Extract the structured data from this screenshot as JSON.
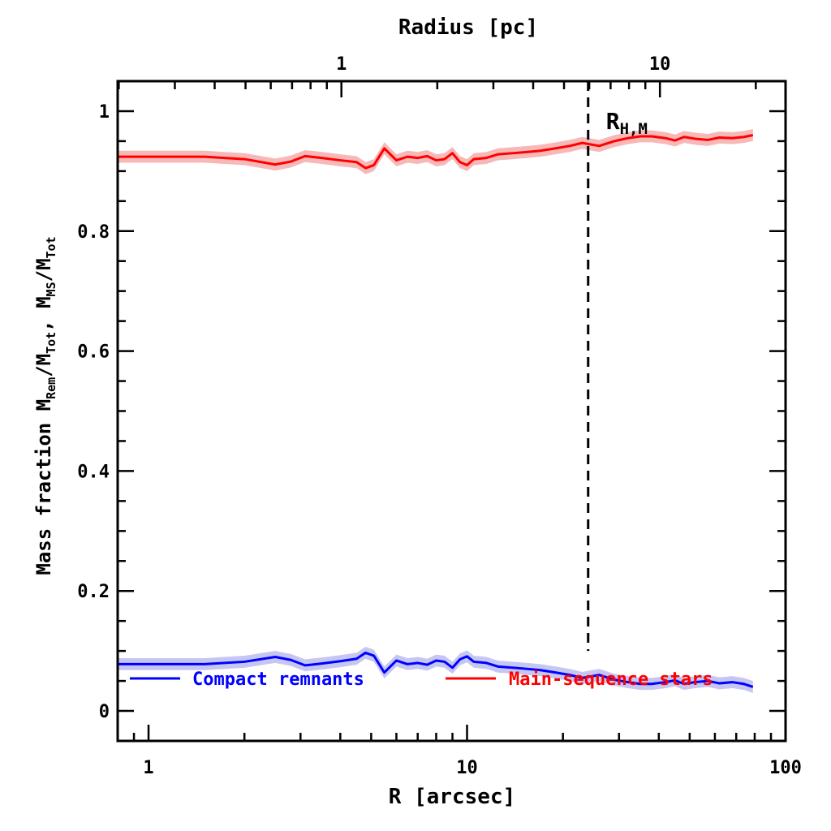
{
  "chart_data": {
    "type": "line",
    "xlabel": "R [arcsec]",
    "x2label": "Radius [pc]",
    "ylabel_parts": {
      "a": "Mass fraction  M",
      "a_sub": "Rem",
      "b": "/M",
      "b_sub": "Tot",
      "c": ",  M",
      "c_sub": "MS",
      "d": "/M",
      "d_sub": "Tot"
    },
    "x_scale": "log",
    "xlim": [
      0.8,
      100
    ],
    "ylim": [
      -0.05,
      1.05
    ],
    "x_ticks": [
      1,
      10,
      100
    ],
    "x_tick_labels": [
      "1",
      "10",
      "100"
    ],
    "x2_ticks_pc": [
      1,
      10
    ],
    "x2_tick_labels": [
      "1",
      "10"
    ],
    "pc_per_arcsec": 0.248,
    "y_ticks": [
      0,
      0.2,
      0.4,
      0.6,
      0.8,
      1
    ],
    "y_tick_labels": [
      "0",
      "0.2",
      "0.4",
      "0.6",
      "0.8",
      "1"
    ],
    "annotation": {
      "text": "R",
      "sub": "H,M",
      "x": 24
    },
    "series": [
      {
        "name": "Main-sequence stars",
        "color": "#ff0000",
        "band_color": "#f7b8b8",
        "x": [
          0.8,
          1.0,
          1.5,
          2.0,
          2.5,
          2.8,
          3.1,
          3.5,
          4.0,
          4.5,
          4.8,
          5.1,
          5.5,
          6.0,
          6.5,
          7.0,
          7.5,
          8.0,
          8.5,
          9.0,
          9.5,
          10.0,
          10.5,
          11.5,
          12.5,
          14,
          15.5,
          17,
          19,
          21,
          23,
          26,
          29,
          32,
          35,
          38,
          42,
          45,
          48,
          52,
          57,
          62,
          68,
          74,
          79
        ],
        "y": [
          0.924,
          0.924,
          0.924,
          0.92,
          0.911,
          0.916,
          0.925,
          0.922,
          0.918,
          0.915,
          0.905,
          0.91,
          0.938,
          0.918,
          0.924,
          0.922,
          0.925,
          0.918,
          0.92,
          0.93,
          0.915,
          0.91,
          0.92,
          0.922,
          0.928,
          0.93,
          0.932,
          0.934,
          0.938,
          0.942,
          0.947,
          0.942,
          0.95,
          0.955,
          0.958,
          0.958,
          0.955,
          0.951,
          0.957,
          0.954,
          0.952,
          0.956,
          0.955,
          0.957,
          0.96
        ],
        "band": 0.01
      },
      {
        "name": "Compact remnants",
        "color": "#0000ff",
        "band_color": "#c6c6f3",
        "x": [
          0.8,
          1.0,
          1.5,
          2.0,
          2.5,
          2.8,
          3.1,
          3.5,
          4.0,
          4.5,
          4.8,
          5.1,
          5.5,
          6.0,
          6.5,
          7.0,
          7.5,
          8.0,
          8.5,
          9.0,
          9.5,
          10.0,
          10.5,
          11.5,
          12.5,
          14,
          15.5,
          17,
          19,
          21,
          23,
          26,
          29,
          32,
          35,
          38,
          42,
          45,
          48,
          52,
          57,
          62,
          68,
          74,
          79
        ],
        "y": [
          0.078,
          0.078,
          0.078,
          0.082,
          0.09,
          0.085,
          0.076,
          0.079,
          0.083,
          0.087,
          0.097,
          0.092,
          0.064,
          0.084,
          0.078,
          0.08,
          0.077,
          0.084,
          0.082,
          0.072,
          0.086,
          0.091,
          0.082,
          0.08,
          0.074,
          0.072,
          0.07,
          0.068,
          0.064,
          0.06,
          0.055,
          0.06,
          0.052,
          0.048,
          0.045,
          0.045,
          0.048,
          0.051,
          0.045,
          0.048,
          0.05,
          0.046,
          0.048,
          0.045,
          0.04
        ],
        "band": 0.01
      }
    ],
    "legend": [
      {
        "label": "Compact remnants",
        "color": "#0000ff"
      },
      {
        "label": "Main-sequence stars",
        "color": "#ff0000"
      }
    ]
  }
}
